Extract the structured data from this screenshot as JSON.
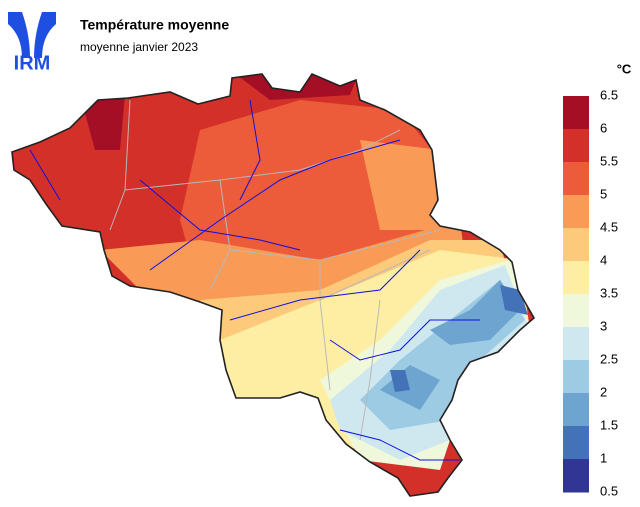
{
  "logo": "IRM",
  "title": "Température moyenne",
  "subtitle": "moyenne janvier 2023",
  "legend": {
    "unit": "°C",
    "ticks": [
      6.5,
      6,
      5.5,
      5,
      4.5,
      4,
      3.5,
      3,
      2.5,
      2,
      1.5,
      1,
      0.5
    ],
    "colors": [
      "#a50f26",
      "#d3302a",
      "#ec5b3a",
      "#f99a56",
      "#fdc97a",
      "#fdeea4",
      "#f0f8dc",
      "#cfe8f0",
      "#9dcbe3",
      "#6ea4d0",
      "#4472b8",
      "#313695"
    ]
  }
}
